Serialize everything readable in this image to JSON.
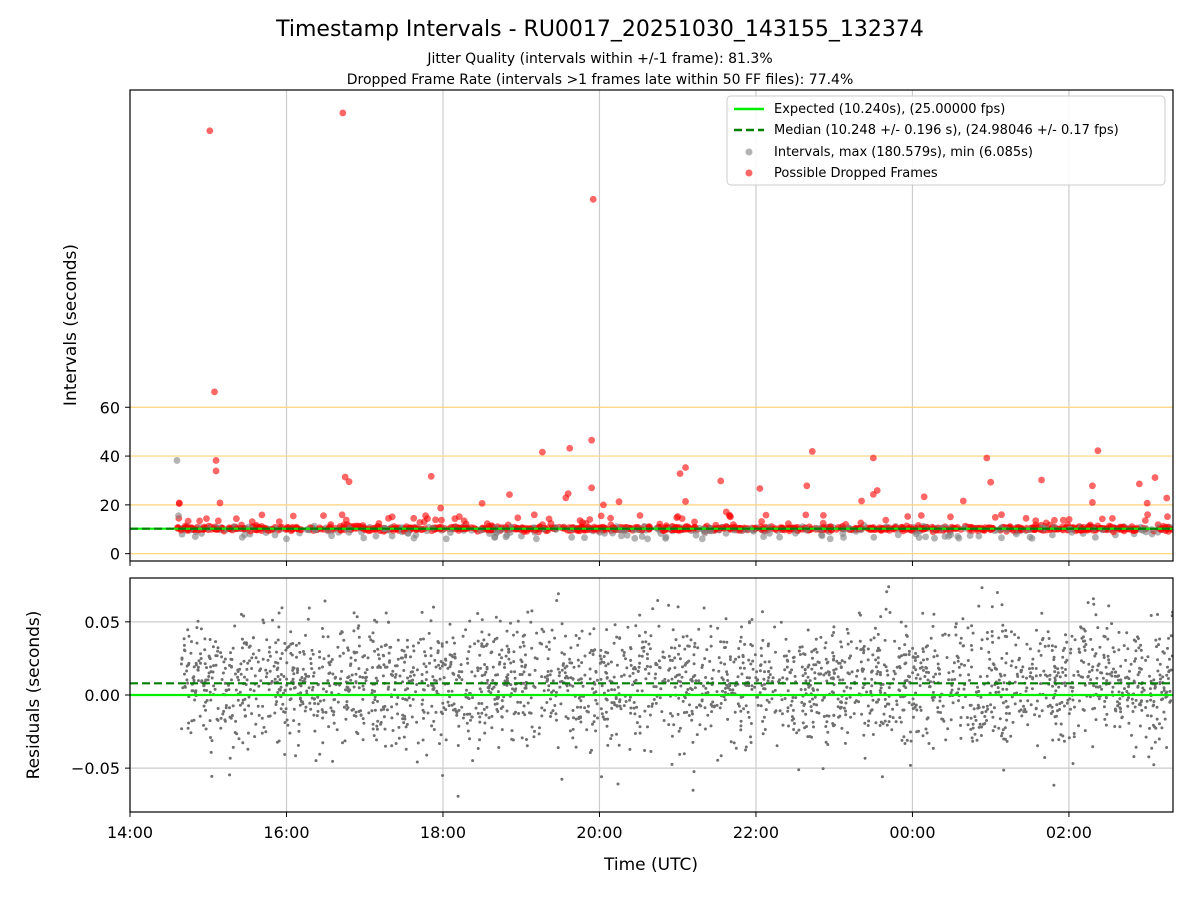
{
  "chart_data": {
    "type": "scatter",
    "title": "Timestamp Intervals - RU0017_20251030_143155_132374",
    "subtitle_lines": [
      "Jitter Quality (intervals within +/-1 frame): 81.3%",
      "Dropped Frame Rate (intervals >1 frames late within 50 FF files): 77.4%"
    ],
    "x_axis": {
      "label": "Time (UTC)",
      "range_hours": [
        14.0,
        27.33
      ],
      "ticks": [
        {
          "hour": 14,
          "label": "14:00"
        },
        {
          "hour": 16,
          "label": "16:00"
        },
        {
          "hour": 18,
          "label": "18:00"
        },
        {
          "hour": 20,
          "label": "20:00"
        },
        {
          "hour": 22,
          "label": "22:00"
        },
        {
          "hour": 24,
          "label": "00:00"
        },
        {
          "hour": 26,
          "label": "02:00"
        }
      ],
      "grid": true
    },
    "top_panel": {
      "ylabel": "Intervals (seconds)",
      "ylim": [
        -3,
        190
      ],
      "yticks": [
        0,
        20,
        40,
        60
      ],
      "ytick_labels": [
        "0",
        "20",
        "40",
        "60"
      ],
      "reference_lines": [
        0,
        20,
        40,
        60
      ],
      "expected": 10.24,
      "median": 10.248,
      "legend": [
        {
          "label": "Expected (10.240s), (25.00000 fps)",
          "kind": "line",
          "color": "#00ee00"
        },
        {
          "label": "Median (10.248 +/- 0.196 s), (24.98046 +/- 0.17 fps)",
          "kind": "dashed",
          "color": "#008000"
        },
        {
          "label": "Intervals, max (180.579s), min (6.085s)",
          "kind": "dot",
          "color": "#808080"
        },
        {
          "label": "Possible Dropped Frames",
          "kind": "dot",
          "color": "#ff0000"
        }
      ],
      "outliers_red": [
        [
          14.63,
          20.8
        ],
        [
          14.63,
          20.5
        ],
        [
          15.02,
          173.3
        ],
        [
          15.08,
          66.3
        ],
        [
          15.1,
          38.2
        ],
        [
          15.1,
          33.9
        ],
        [
          15.15,
          20.8
        ],
        [
          16.72,
          180.6
        ],
        [
          16.75,
          31.4
        ],
        [
          16.8,
          29.5
        ],
        [
          17.85,
          31.7
        ],
        [
          17.97,
          18.7
        ],
        [
          18.5,
          20.6
        ],
        [
          18.85,
          24.2
        ],
        [
          19.27,
          41.6
        ],
        [
          19.57,
          22.9
        ],
        [
          19.6,
          24.6
        ],
        [
          19.62,
          43.2
        ],
        [
          19.9,
          46.5
        ],
        [
          19.9,
          27.0
        ],
        [
          19.92,
          145.2
        ],
        [
          20.05,
          20.0
        ],
        [
          20.25,
          21.3
        ],
        [
          21.03,
          32.8
        ],
        [
          21.1,
          35.3
        ],
        [
          21.1,
          21.4
        ],
        [
          21.55,
          29.8
        ],
        [
          21.62,
          17.1
        ],
        [
          22.05,
          26.7
        ],
        [
          22.65,
          27.8
        ],
        [
          22.72,
          41.9
        ],
        [
          23.35,
          21.6
        ],
        [
          23.5,
          39.2
        ],
        [
          23.55,
          25.9
        ],
        [
          23.5,
          24.3
        ],
        [
          24.15,
          23.3
        ],
        [
          24.65,
          21.6
        ],
        [
          24.95,
          39.2
        ],
        [
          25.0,
          29.3
        ],
        [
          25.65,
          30.2
        ],
        [
          26.3,
          27.8
        ],
        [
          26.3,
          21.0
        ],
        [
          26.37,
          42.2
        ],
        [
          26.9,
          28.6
        ],
        [
          27.1,
          31.2
        ],
        [
          27.25,
          22.8
        ],
        [
          27.0,
          20.7
        ]
      ],
      "outliers_grey": [
        [
          14.6,
          38.2
        ],
        [
          14.62,
          15.6
        ],
        [
          16.0,
          6.1
        ]
      ]
    },
    "bottom_panel": {
      "ylabel": "Residuals (seconds)",
      "ylim": [
        -0.08,
        0.08
      ],
      "yticks": [
        -0.05,
        0.0,
        0.05
      ],
      "ytick_labels": [
        "−0.05",
        "0.00",
        "0.05"
      ],
      "expected_residual": 0.0,
      "median_residual": 0.008
    },
    "colors": {
      "expected": "#00ee00",
      "median": "#008000",
      "intervals": "#808080",
      "dropped": "#ff0000",
      "ref_lines": "#ffd37a",
      "grid": "#cccccc"
    }
  }
}
